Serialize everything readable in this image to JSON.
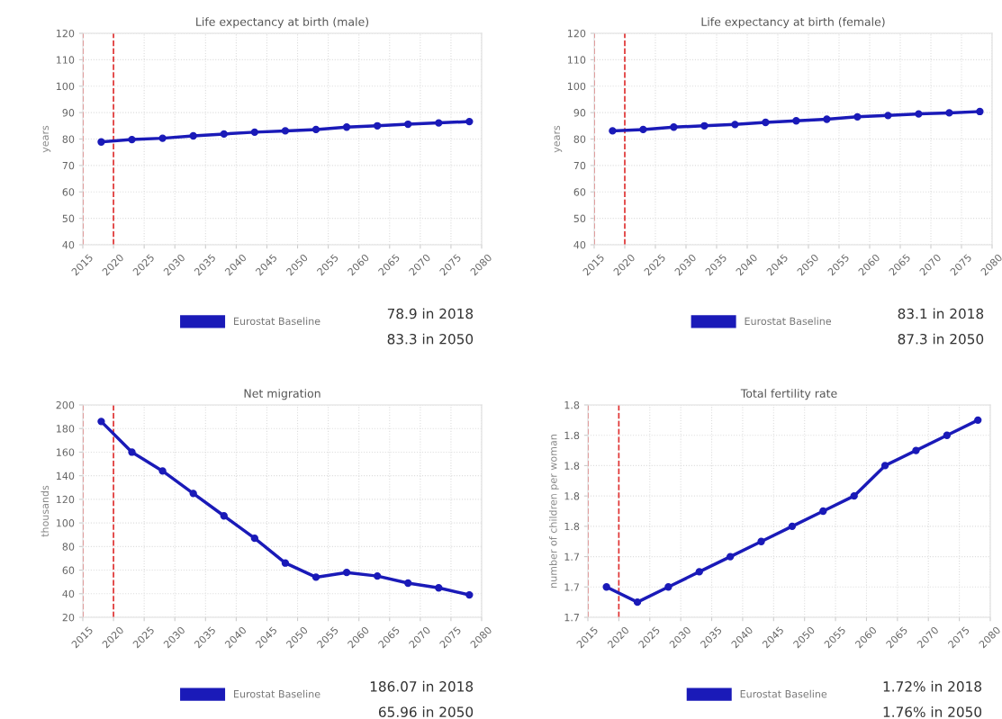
{
  "chart_data": [
    {
      "type": "line",
      "title": "Life expectancy at birth (male)",
      "ylabel": "years",
      "x": [
        2018,
        2023,
        2028,
        2033,
        2038,
        2043,
        2048,
        2053,
        2058,
        2063,
        2068,
        2073,
        2078
      ],
      "series": [
        {
          "name": "Eurostat Baseline",
          "color": "#1a1ab8",
          "values": [
            78.9,
            79.8,
            80.3,
            81.2,
            81.9,
            82.6,
            83.1,
            83.6,
            84.5,
            85.0,
            85.6,
            86.1,
            86.6
          ]
        }
      ],
      "xlim": [
        2015,
        2080
      ],
      "xticks": [
        2015,
        2020,
        2025,
        2030,
        2035,
        2040,
        2045,
        2050,
        2055,
        2060,
        2065,
        2070,
        2075,
        2080
      ],
      "ylim": [
        40,
        120
      ],
      "yticks": [
        40,
        50,
        60,
        70,
        80,
        90,
        100,
        110,
        120
      ],
      "grid": true,
      "legend": "bottom",
      "marker": "circle",
      "line_style": "solid",
      "ref_lines": [
        {
          "axis": "x",
          "value": 2015,
          "color": "#e03030",
          "line_style": "dashed"
        },
        {
          "axis": "x",
          "value": 2020,
          "color": "#e03030",
          "line_style": "dashed"
        }
      ],
      "annotations": [
        "78.9 in 2018",
        "83.3 in 2050"
      ]
    },
    {
      "type": "line",
      "title": "Life expectancy at birth (female)",
      "ylabel": "years",
      "x": [
        2018,
        2023,
        2028,
        2033,
        2038,
        2043,
        2048,
        2053,
        2058,
        2063,
        2068,
        2073,
        2078
      ],
      "series": [
        {
          "name": "Eurostat Baseline",
          "color": "#1a1ab8",
          "values": [
            83.1,
            83.6,
            84.5,
            85.0,
            85.5,
            86.3,
            86.9,
            87.5,
            88.4,
            88.9,
            89.5,
            89.9,
            90.4
          ]
        }
      ],
      "xlim": [
        2015,
        2080
      ],
      "xticks": [
        2015,
        2020,
        2025,
        2030,
        2035,
        2040,
        2045,
        2050,
        2055,
        2060,
        2065,
        2070,
        2075,
        2080
      ],
      "ylim": [
        40,
        120
      ],
      "yticks": [
        40,
        50,
        60,
        70,
        80,
        90,
        100,
        110,
        120
      ],
      "grid": true,
      "legend": "bottom",
      "marker": "circle",
      "line_style": "solid",
      "ref_lines": [
        {
          "axis": "x",
          "value": 2015,
          "color": "#e03030",
          "line_style": "dashed"
        },
        {
          "axis": "x",
          "value": 2020,
          "color": "#e03030",
          "line_style": "dashed"
        }
      ],
      "annotations": [
        "83.1 in 2018",
        "87.3 in 2050"
      ]
    },
    {
      "type": "line",
      "title": "Net migration",
      "ylabel": "thousands",
      "x": [
        2018,
        2023,
        2028,
        2033,
        2038,
        2043,
        2048,
        2053,
        2058,
        2063,
        2068,
        2073,
        2078
      ],
      "series": [
        {
          "name": "Eurostat Baseline",
          "color": "#1a1ab8",
          "values": [
            186,
            160,
            144,
            125,
            106,
            87,
            66,
            54,
            58,
            55,
            49,
            45,
            39
          ]
        }
      ],
      "xlim": [
        2015,
        2080
      ],
      "xticks": [
        2015,
        2020,
        2025,
        2030,
        2035,
        2040,
        2045,
        2050,
        2055,
        2060,
        2065,
        2070,
        2075,
        2080
      ],
      "ylim": [
        20,
        200
      ],
      "yticks": [
        20,
        40,
        60,
        80,
        100,
        120,
        140,
        160,
        180,
        200
      ],
      "grid": true,
      "legend": "bottom",
      "marker": "circle",
      "line_style": "solid",
      "ref_lines": [
        {
          "axis": "x",
          "value": 2015,
          "color": "#e03030",
          "line_style": "dashed"
        },
        {
          "axis": "x",
          "value": 2020,
          "color": "#e03030",
          "line_style": "dashed"
        }
      ],
      "annotations": [
        "186.07 in 2018",
        "65.96 in 2050"
      ]
    },
    {
      "type": "line",
      "title": "Total fertility rate",
      "ylabel": "number of children per woman",
      "x": [
        2018,
        2023,
        2028,
        2033,
        2038,
        2043,
        2048,
        2053,
        2058,
        2063,
        2068,
        2073,
        2078
      ],
      "series": [
        {
          "name": "Eurostat Baseline",
          "color": "#1a1ab8",
          "values": [
            1.72,
            1.71,
            1.72,
            1.73,
            1.74,
            1.75,
            1.76,
            1.77,
            1.78,
            1.8,
            1.81,
            1.82,
            1.83
          ]
        }
      ],
      "xlim": [
        2015,
        2080
      ],
      "xticks": [
        2015,
        2020,
        2025,
        2030,
        2035,
        2040,
        2045,
        2050,
        2055,
        2060,
        2065,
        2070,
        2075,
        2080
      ],
      "ylim": [
        1.7,
        1.84
      ],
      "yticks": [
        {
          "value": 1.7,
          "label": "1.7"
        },
        {
          "value": 1.72,
          "label": "1.7"
        },
        {
          "value": 1.74,
          "label": "1.7"
        },
        {
          "value": 1.76,
          "label": "1.8"
        },
        {
          "value": 1.78,
          "label": "1.8"
        },
        {
          "value": 1.8,
          "label": "1.8"
        },
        {
          "value": 1.82,
          "label": "1.8"
        },
        {
          "value": 1.84,
          "label": "1.8"
        }
      ],
      "grid": true,
      "legend": "bottom",
      "marker": "circle",
      "line_style": "solid",
      "ref_lines": [
        {
          "axis": "x",
          "value": 2015,
          "color": "#e03030",
          "line_style": "dashed"
        },
        {
          "axis": "x",
          "value": 2020,
          "color": "#e03030",
          "line_style": "dashed"
        }
      ],
      "annotations": [
        "1.72% in 2018",
        "1.76% in 2050"
      ]
    }
  ]
}
